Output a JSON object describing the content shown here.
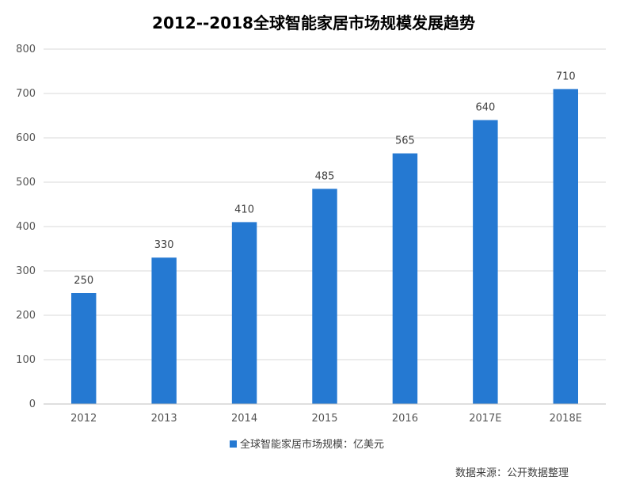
{
  "chart_data": {
    "type": "bar",
    "title": "2012--2018全球智能家居市场规模发展趋势",
    "categories": [
      "2012",
      "2013",
      "2014",
      "2015",
      "2016",
      "2017E",
      "2018E"
    ],
    "series": [
      {
        "name": "全球智能家居市场规模：亿美元",
        "values": [
          250,
          330,
          410,
          485,
          565,
          640,
          710
        ]
      }
    ],
    "ylim": [
      0,
      800
    ],
    "yticks": [
      0,
      100,
      200,
      300,
      400,
      500,
      600,
      700,
      800
    ],
    "grid": true,
    "legend_position": "bottom",
    "bar_color": "#2579d2",
    "data_labels": true
  },
  "source_note": "数据来源：公开数据整理"
}
